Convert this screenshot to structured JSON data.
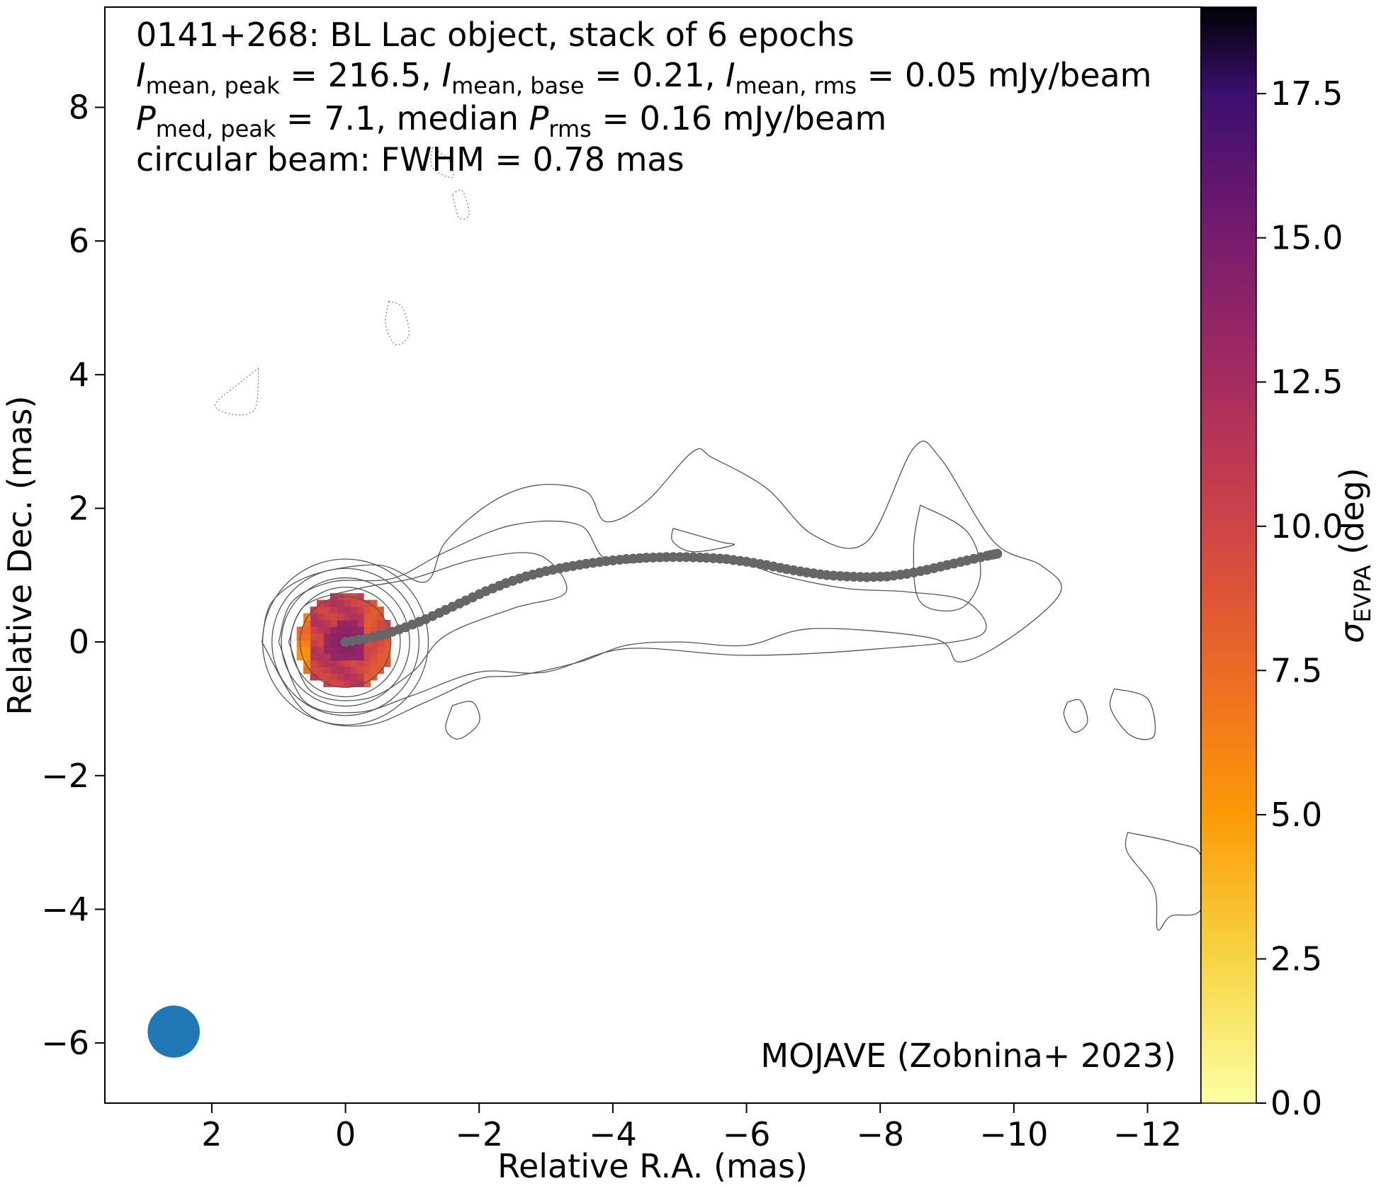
{
  "chart_data": {
    "type": "heatmap",
    "title": {
      "line1": "0141+268: BL Lac object, stack of 6 epochs",
      "line2": {
        "i_peak_sym": "I",
        "i_peak_sub": "mean, peak",
        "i_peak_val": " = 216.5, ",
        "i_base_sym": "I",
        "i_base_sub": "mean, base",
        "i_base_val": " = 0.21, ",
        "i_rms_sym": "I",
        "i_rms_sub": "mean, rms",
        "i_rms_val": " = 0.05 mJy/beam"
      },
      "line3": {
        "p_sym": "P",
        "p_sub": "med, peak",
        "p_val": " = 7.1, median ",
        "prms_sym": "P",
        "prms_sub": "rms",
        "prms_val": " = 0.16 mJy/beam"
      },
      "line4": "circular beam: FWHM = 0.78 mas"
    },
    "credit": "MOJAVE (Zobnina+ 2023)",
    "xlabel": "Relative R.A. (mas)",
    "ylabel": "Relative Dec. (mas)",
    "xlim": [
      3.6,
      -12.8
    ],
    "ylim": [
      -6.9,
      9.5
    ],
    "xticks": [
      {
        "v": 2,
        "label": "2"
      },
      {
        "v": 0,
        "label": "0"
      },
      {
        "v": -2,
        "label": "−2"
      },
      {
        "v": -4,
        "label": "−4"
      },
      {
        "v": -6,
        "label": "−6"
      },
      {
        "v": -8,
        "label": "−8"
      },
      {
        "v": -10,
        "label": "−10"
      },
      {
        "v": -12,
        "label": "−12"
      }
    ],
    "yticks": [
      {
        "v": -6,
        "label": "−6"
      },
      {
        "v": -4,
        "label": "−4"
      },
      {
        "v": -2,
        "label": "−2"
      },
      {
        "v": 0,
        "label": "0"
      },
      {
        "v": 2,
        "label": "2"
      },
      {
        "v": 4,
        "label": "4"
      },
      {
        "v": 6,
        "label": "6"
      },
      {
        "v": 8,
        "label": "8"
      }
    ],
    "colorbar": {
      "label_sym": "σ",
      "label_sub": "EVPA",
      "label_unit": " (deg)",
      "range": [
        0,
        19
      ],
      "ticks": [
        {
          "v": 0,
          "label": "0.0"
        },
        {
          "v": 2.5,
          "label": "2.5"
        },
        {
          "v": 5,
          "label": "5.0"
        },
        {
          "v": 7.5,
          "label": "7.5"
        },
        {
          "v": 10,
          "label": "10.0"
        },
        {
          "v": 12.5,
          "label": "12.5"
        },
        {
          "v": 15,
          "label": "15.0"
        },
        {
          "v": 17.5,
          "label": "17.5"
        }
      ],
      "stops": [
        {
          "v": 0,
          "c": "#fcffa4"
        },
        {
          "v": 2.5,
          "c": "#f6d543"
        },
        {
          "v": 5,
          "c": "#fb9b06"
        },
        {
          "v": 7.5,
          "c": "#ed6925"
        },
        {
          "v": 10,
          "c": "#cf4446"
        },
        {
          "v": 12.5,
          "c": "#a52c60"
        },
        {
          "v": 15,
          "c": "#781c6d"
        },
        {
          "v": 17.5,
          "c": "#3b0f70"
        },
        {
          "v": 19,
          "c": "#000004"
        }
      ]
    },
    "evpa_map": {
      "center": [
        0,
        0
      ],
      "radius_mas": 0.72,
      "base_value": 10.8,
      "core_value": 14.5,
      "west_value": 9.2,
      "east_edge_value": 6.5
    },
    "ridgeline": {
      "color": "#666666",
      "x": [
        0.0,
        -0.3,
        -0.6,
        -0.9,
        -1.2,
        -1.5,
        -1.8,
        -2.1,
        -2.4,
        -2.7,
        -3.0,
        -3.3,
        -3.6,
        -3.9,
        -4.2,
        -4.5,
        -4.8,
        -5.1,
        -5.4,
        -5.7,
        -6.0,
        -6.3,
        -6.6,
        -6.9,
        -7.2,
        -7.5,
        -7.8,
        -8.1,
        -8.4,
        -8.7,
        -9.0,
        -9.3,
        -9.6,
        -9.75
      ],
      "y": [
        0.0,
        0.05,
        0.12,
        0.22,
        0.34,
        0.48,
        0.62,
        0.76,
        0.88,
        0.98,
        1.06,
        1.12,
        1.17,
        1.21,
        1.24,
        1.26,
        1.27,
        1.27,
        1.26,
        1.24,
        1.2,
        1.15,
        1.09,
        1.04,
        1.0,
        0.98,
        0.97,
        0.98,
        1.02,
        1.08,
        1.15,
        1.22,
        1.29,
        1.32
      ]
    },
    "contours": {
      "color": "#555555",
      "core_levels_mas": [
        0.68,
        0.82,
        0.96,
        1.1,
        1.24
      ],
      "jet_outlines": [
        [
          [
            1.25,
            0.0
          ],
          [
            1.1,
            0.6
          ],
          [
            0.5,
            1.0
          ],
          [
            -0.5,
            1.15
          ],
          [
            -1.2,
            0.9
          ],
          [
            -1.5,
            1.5
          ],
          [
            -2.2,
            2.1
          ],
          [
            -2.9,
            2.35
          ],
          [
            -3.6,
            2.25
          ],
          [
            -3.9,
            1.8
          ],
          [
            -4.5,
            2.1
          ],
          [
            -5.2,
            2.85
          ],
          [
            -5.5,
            2.75
          ],
          [
            -6.3,
            2.3
          ],
          [
            -7.0,
            1.6
          ],
          [
            -7.8,
            1.5
          ],
          [
            -8.5,
            2.9
          ],
          [
            -8.9,
            2.75
          ],
          [
            -9.7,
            1.5
          ],
          [
            -10.4,
            1.15
          ],
          [
            -10.7,
            0.75
          ],
          [
            -10.0,
            0.1
          ],
          [
            -9.2,
            -0.3
          ],
          [
            -8.8,
            0.05
          ],
          [
            -7.0,
            0.2
          ],
          [
            -6.0,
            -0.05
          ],
          [
            -5.0,
            0.0
          ],
          [
            -4.2,
            -0.05
          ],
          [
            -3.5,
            -0.3
          ],
          [
            -2.6,
            -0.5
          ],
          [
            -2.0,
            -0.55
          ],
          [
            -1.2,
            -0.9
          ],
          [
            -0.3,
            -1.25
          ],
          [
            0.6,
            -1.05
          ],
          [
            1.25,
            0.0
          ]
        ],
        [
          [
            1.0,
            0.0
          ],
          [
            0.8,
            0.6
          ],
          [
            0.2,
            0.9
          ],
          [
            -0.7,
            0.95
          ],
          [
            -1.5,
            1.35
          ],
          [
            -2.5,
            1.75
          ],
          [
            -3.5,
            1.75
          ],
          [
            -4.0,
            1.2
          ],
          [
            -5.5,
            1.3
          ],
          [
            -6.5,
            1.0
          ],
          [
            -7.5,
            0.8
          ],
          [
            -8.4,
            0.75
          ],
          [
            -9.3,
            0.6
          ],
          [
            -9.5,
            0.1
          ],
          [
            -8.0,
            -0.1
          ],
          [
            -6.0,
            -0.2
          ],
          [
            -4.2,
            -0.1
          ],
          [
            -3.0,
            -0.45
          ],
          [
            -2.0,
            -0.45
          ],
          [
            -1.0,
            -0.8
          ],
          [
            -0.2,
            -1.05
          ],
          [
            0.6,
            -0.9
          ],
          [
            1.0,
            0.0
          ]
        ],
        [
          [
            0.85,
            0.0
          ],
          [
            0.6,
            0.55
          ],
          [
            -0.2,
            0.8
          ],
          [
            -1.0,
            0.95
          ],
          [
            -2.0,
            1.25
          ],
          [
            -2.9,
            1.3
          ],
          [
            -3.3,
            0.75
          ],
          [
            -2.5,
            0.5
          ],
          [
            -1.5,
            0.1
          ],
          [
            -1.0,
            -0.45
          ],
          [
            -0.3,
            -0.85
          ],
          [
            0.5,
            -0.75
          ],
          [
            0.85,
            0.0
          ]
        ],
        [
          [
            -8.6,
            2.05
          ],
          [
            -9.3,
            1.65
          ],
          [
            -9.5,
            1.0
          ],
          [
            -9.2,
            0.5
          ],
          [
            -8.6,
            0.6
          ],
          [
            -8.5,
            1.4
          ],
          [
            -8.6,
            2.05
          ]
        ],
        [
          [
            -4.9,
            1.7
          ],
          [
            -5.6,
            1.5
          ],
          [
            -5.8,
            1.45
          ],
          [
            -5.2,
            1.35
          ],
          [
            -4.9,
            1.5
          ],
          [
            -4.9,
            1.7
          ]
        ],
        [
          [
            -1.6,
            -0.95
          ],
          [
            -1.9,
            -0.9
          ],
          [
            -2.0,
            -1.2
          ],
          [
            -1.7,
            -1.45
          ],
          [
            -1.5,
            -1.3
          ],
          [
            -1.6,
            -0.95
          ]
        ],
        [
          [
            -10.8,
            -0.9
          ],
          [
            -11.0,
            -0.88
          ],
          [
            -11.1,
            -1.2
          ],
          [
            -10.9,
            -1.35
          ],
          [
            -10.75,
            -1.1
          ],
          [
            -10.8,
            -0.9
          ]
        ],
        [
          [
            -11.5,
            -0.7
          ],
          [
            -12.0,
            -0.85
          ],
          [
            -12.1,
            -1.4
          ],
          [
            -11.75,
            -1.4
          ],
          [
            -11.45,
            -1.0
          ],
          [
            -11.5,
            -0.7
          ]
        ],
        [
          [
            -11.7,
            -2.85
          ],
          [
            -12.4,
            -3.0
          ],
          [
            -12.8,
            -3.2
          ],
          [
            -12.8,
            -4.0
          ],
          [
            -12.35,
            -4.1
          ],
          [
            -12.15,
            -4.3
          ],
          [
            -12.1,
            -3.7
          ],
          [
            -11.7,
            -3.15
          ],
          [
            -11.7,
            -2.85
          ]
        ]
      ],
      "dotted_outlines": [
        [
          [
            1.3,
            4.1
          ],
          [
            1.55,
            3.9
          ],
          [
            1.95,
            3.55
          ],
          [
            1.65,
            3.4
          ],
          [
            1.35,
            3.5
          ],
          [
            1.3,
            4.1
          ]
        ],
        [
          [
            -0.65,
            5.1
          ],
          [
            -0.85,
            5.0
          ],
          [
            -0.95,
            4.6
          ],
          [
            -0.75,
            4.45
          ],
          [
            -0.6,
            4.75
          ],
          [
            -0.65,
            5.1
          ]
        ],
        [
          [
            -1.6,
            6.7
          ],
          [
            -1.75,
            6.75
          ],
          [
            -1.85,
            6.4
          ],
          [
            -1.7,
            6.35
          ],
          [
            -1.6,
            6.7
          ]
        ],
        [
          [
            -1.3,
            7.4
          ],
          [
            -1.55,
            7.2
          ],
          [
            -1.6,
            6.95
          ],
          [
            -1.3,
            7.1
          ],
          [
            -1.3,
            7.4
          ]
        ]
      ]
    },
    "beam": {
      "x": 2.57,
      "y": -5.83,
      "fwhm_mas": 0.78,
      "color": "#1f77b4"
    }
  }
}
